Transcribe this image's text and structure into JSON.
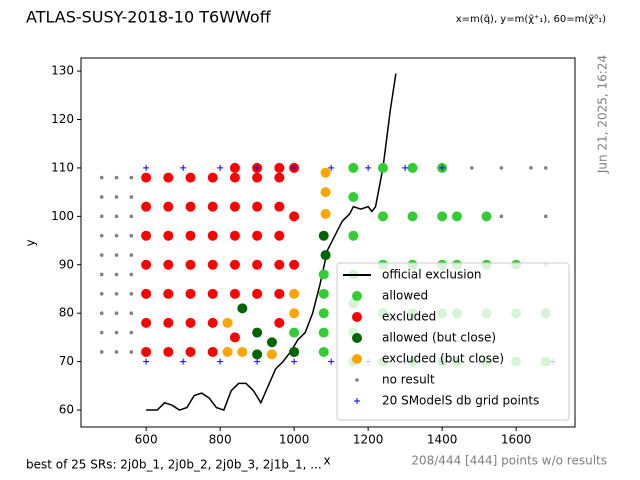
{
  "chart_data": {
    "type": "scatter",
    "title": "ATLAS-SUSY-2018-10 T6WWoff",
    "subtitle": "x=m(q̃), y=m(χ̃⁺₁), 60=m(χ̃⁰₁)",
    "side_note": "Jun 21, 2025, 16:24",
    "footnote_left": "best of 25 SRs: 2j0b_1, 2j0b_2, 2j0b_3, 2j1b_1, ...",
    "footnote_right": "208/444 [444] points w/o results",
    "x_label": "x",
    "y_label": "y",
    "xlim": [
      424,
      1759
    ],
    "ylim": [
      56.5,
      132.7
    ],
    "xticks": [
      600,
      800,
      1000,
      1200,
      1400,
      1600
    ],
    "yticks": [
      60,
      70,
      80,
      90,
      100,
      110,
      120,
      130
    ],
    "legend": "lower right",
    "series": [
      {
        "name": "official exclusion",
        "color": "#000000",
        "marker": "line",
        "x": [
          600,
          630,
          650,
          670,
          690,
          710,
          730,
          750,
          770,
          790,
          810,
          830,
          850,
          870,
          890,
          910,
          930,
          950,
          970,
          990,
          1010,
          1030,
          1050,
          1070,
          1090,
          1110,
          1130,
          1150,
          1160,
          1180,
          1200,
          1210,
          1220,
          1240,
          1260,
          1275
        ],
        "y": [
          60,
          60,
          61.5,
          61,
          60,
          60.5,
          63,
          63.5,
          62.5,
          60.5,
          60,
          64,
          65.5,
          65.5,
          64,
          61.5,
          65,
          68.5,
          70,
          72,
          74.5,
          76,
          80,
          86,
          93,
          96,
          99,
          100.5,
          102,
          101.5,
          102,
          101,
          102,
          110,
          122,
          129.5
        ]
      },
      {
        "name": "allowed",
        "color": "#32cd32",
        "marker": "circle",
        "x": [
          1000,
          1000,
          1080,
          1080,
          1080,
          1080,
          1080,
          1160,
          1160,
          1160,
          1160,
          1160,
          1160,
          1160,
          1240,
          1240,
          1240,
          1240,
          1240,
          1320,
          1320,
          1320,
          1320,
          1320,
          1400,
          1400,
          1400,
          1400,
          1400,
          1440,
          1440,
          1440,
          1440,
          1520,
          1520,
          1520,
          1520,
          1600,
          1600,
          1600,
          1680,
          1680
        ],
        "y": [
          72,
          76,
          72,
          76,
          80,
          84,
          88,
          70,
          76,
          82,
          88,
          96,
          104,
          110,
          70,
          80,
          90,
          100,
          110,
          70,
          80,
          90,
          100,
          110,
          70,
          80,
          90,
          100,
          110,
          70,
          80,
          90,
          100,
          70,
          80,
          90,
          100,
          70,
          80,
          90,
          70,
          80
        ]
      },
      {
        "name": "excluded",
        "color": "#ff0000",
        "marker": "circle",
        "x": [
          600,
          600,
          600,
          600,
          600,
          600,
          600,
          660,
          660,
          660,
          660,
          660,
          660,
          660,
          720,
          720,
          720,
          720,
          720,
          720,
          720,
          780,
          780,
          780,
          780,
          780,
          780,
          780,
          840,
          840,
          840,
          840,
          840,
          840,
          840,
          900,
          900,
          900,
          900,
          900,
          900,
          960,
          960,
          960,
          960,
          960,
          960,
          960,
          1000,
          1000,
          1000
        ],
        "y": [
          72,
          78,
          84,
          90,
          96,
          102,
          108,
          72,
          78,
          84,
          90,
          96,
          102,
          108,
          72,
          78,
          84,
          90,
          96,
          102,
          108,
          72,
          78,
          84,
          90,
          96,
          102,
          108,
          75,
          84,
          90,
          96,
          102,
          108,
          110,
          84,
          90,
          96,
          102,
          108,
          110,
          78,
          84,
          90,
          96,
          102,
          108,
          110,
          90,
          100,
          110
        ]
      },
      {
        "name": "allowed (but close)",
        "color": "#006400",
        "marker": "circle",
        "x": [
          900,
          900,
          860,
          940,
          1000,
          1080,
          1085
        ],
        "y": [
          71.5,
          76,
          81,
          74,
          72,
          96,
          92
        ]
      },
      {
        "name": "excluded (but close)",
        "color": "#ffa500",
        "marker": "circle",
        "x": [
          820,
          860,
          940,
          820,
          1000,
          1000,
          1085,
          1085,
          1085
        ],
        "y": [
          72,
          72,
          71.5,
          78,
          80,
          84,
          109,
          105,
          100.5
        ]
      },
      {
        "name": "no result",
        "color": "#808080",
        "marker": "dot",
        "x": [
          480,
          480,
          480,
          480,
          480,
          480,
          480,
          480,
          480,
          480,
          520,
          520,
          520,
          520,
          520,
          520,
          520,
          520,
          520,
          520,
          560,
          560,
          560,
          560,
          560,
          560,
          560,
          560,
          560,
          560,
          1480,
          1560,
          1640,
          1680,
          1560,
          1680,
          1680,
          1680
        ],
        "y": [
          72,
          76,
          80,
          84,
          88,
          92,
          96,
          100,
          104,
          108,
          72,
          76,
          80,
          84,
          88,
          92,
          96,
          100,
          104,
          108,
          72,
          76,
          80,
          84,
          88,
          92,
          96,
          100,
          104,
          108,
          110,
          110,
          110,
          110,
          100,
          100,
          90,
          80
        ]
      },
      {
        "name": "20 SModelS db grid points",
        "color": "#0000ff",
        "marker": "plus",
        "x": [
          600,
          700,
          800,
          900,
          1000,
          1100,
          1200,
          1300,
          1400,
          600,
          700,
          800,
          900,
          1000,
          1100,
          1200,
          1300,
          1400,
          1500,
          1700
        ],
        "y": [
          110,
          110,
          110,
          110,
          110,
          110,
          110,
          110,
          110,
          70,
          70,
          70,
          70,
          70,
          70,
          70,
          70,
          70,
          70,
          70
        ]
      }
    ]
  }
}
